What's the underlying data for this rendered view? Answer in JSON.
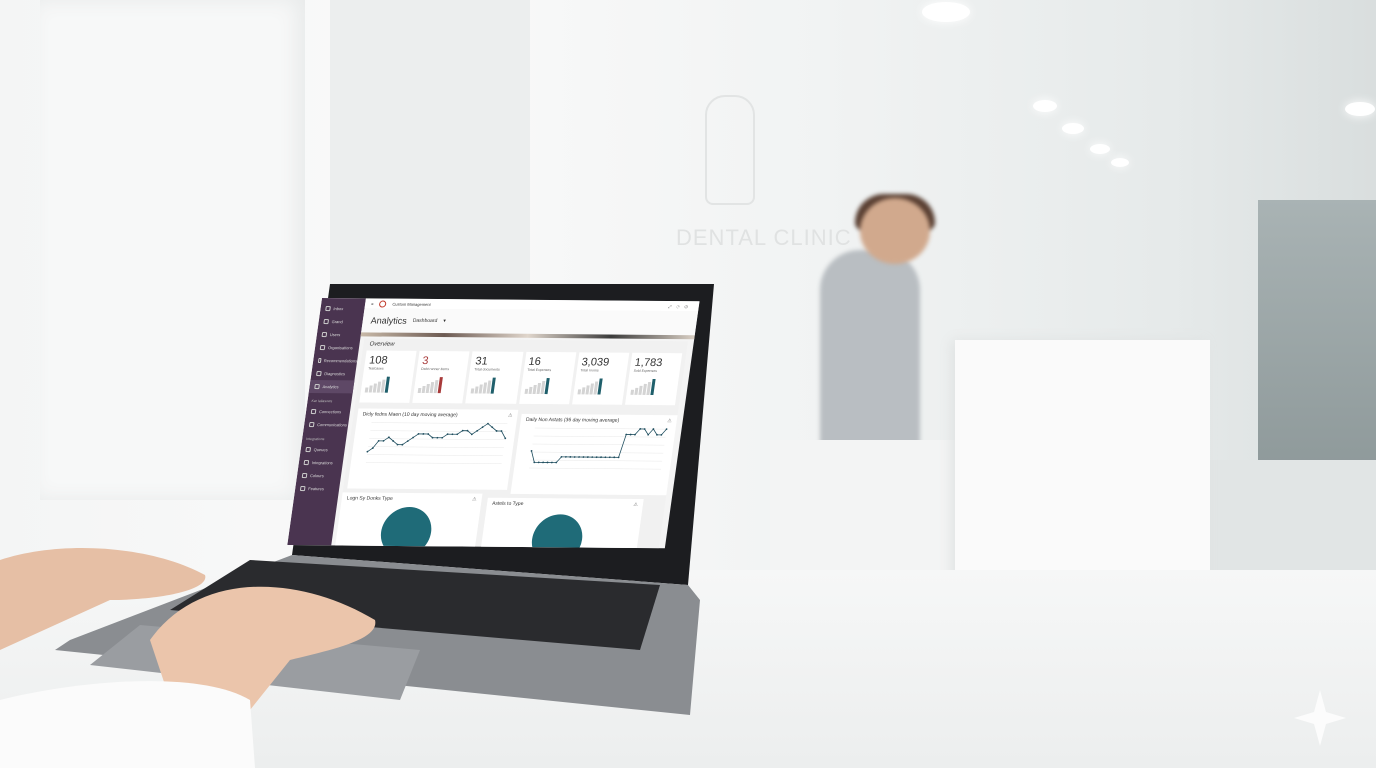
{
  "scene": {
    "wall_logo_text": "DENTAL CLINIC"
  },
  "app": {
    "title": "Custom Management",
    "page_title": "Analytics",
    "view_select": "Dashboard"
  },
  "sidebar": {
    "items": [
      {
        "label": "Inbox",
        "icon": "home-icon"
      },
      {
        "label": "Grand",
        "icon": "user-icon"
      },
      {
        "label": "Users",
        "icon": "users-icon"
      },
      {
        "label": "Organisations",
        "icon": "org-icon"
      },
      {
        "label": "Recommendations",
        "icon": "pin-icon"
      },
      {
        "label": "Diagnostics",
        "icon": "calendar-icon"
      },
      {
        "label": "Analytics",
        "icon": "chart-icon",
        "active": true
      }
    ],
    "section1": "Kar Ialiasows",
    "items2": [
      {
        "label": "Connections",
        "icon": "link-icon"
      },
      {
        "label": "Communications",
        "icon": "search-icon"
      }
    ],
    "section2": "Integrations",
    "items3": [
      {
        "label": "Queues",
        "icon": "gear-icon"
      },
      {
        "label": "Integrations",
        "icon": "grid-icon"
      },
      {
        "label": "Colours",
        "icon": "palette-icon"
      },
      {
        "label": "Features",
        "icon": "tools-icon"
      }
    ]
  },
  "overview": {
    "title": "Overview",
    "cards": [
      {
        "value": "108",
        "label": "Testcases",
        "accent": "#1f5f6b"
      },
      {
        "value": "3",
        "label": "Debt runner items",
        "accent": "#a83a3a"
      },
      {
        "value": "31",
        "label": "Total documents",
        "accent": "#1f5f6b"
      },
      {
        "value": "16",
        "label": "Total Expenses",
        "accent": "#1f5f6b"
      },
      {
        "value": "3,039",
        "label": "Total rooms",
        "accent": "#1f5f6b"
      },
      {
        "value": "1,783",
        "label": "Sold Expenses",
        "accent": "#1f5f6b"
      }
    ]
  },
  "chart_data": [
    {
      "type": "line",
      "title": "Dicly fedns Maen (10 day moving average)",
      "values": [
        3,
        4,
        6,
        6,
        7,
        6,
        5,
        5,
        6,
        7,
        8,
        8,
        8,
        7,
        7,
        7,
        8,
        8,
        8,
        9,
        9,
        8,
        9,
        10,
        11,
        10,
        9,
        9,
        7
      ]
    },
    {
      "type": "line",
      "title": "Daily Non Astats (36 day moving average)",
      "values": [
        3,
        1,
        1,
        1,
        1,
        1,
        1,
        2,
        2,
        2,
        2,
        2,
        2,
        2,
        2,
        2,
        2,
        2,
        2,
        2,
        2,
        6,
        6,
        6,
        7,
        7,
        6,
        7,
        6,
        6,
        7
      ]
    },
    {
      "type": "pie",
      "title": "Logn Sy Donks Type",
      "color": "#1f6b78"
    },
    {
      "type": "pie",
      "title": "Astels to Type",
      "color": "#1f6b78"
    }
  ]
}
